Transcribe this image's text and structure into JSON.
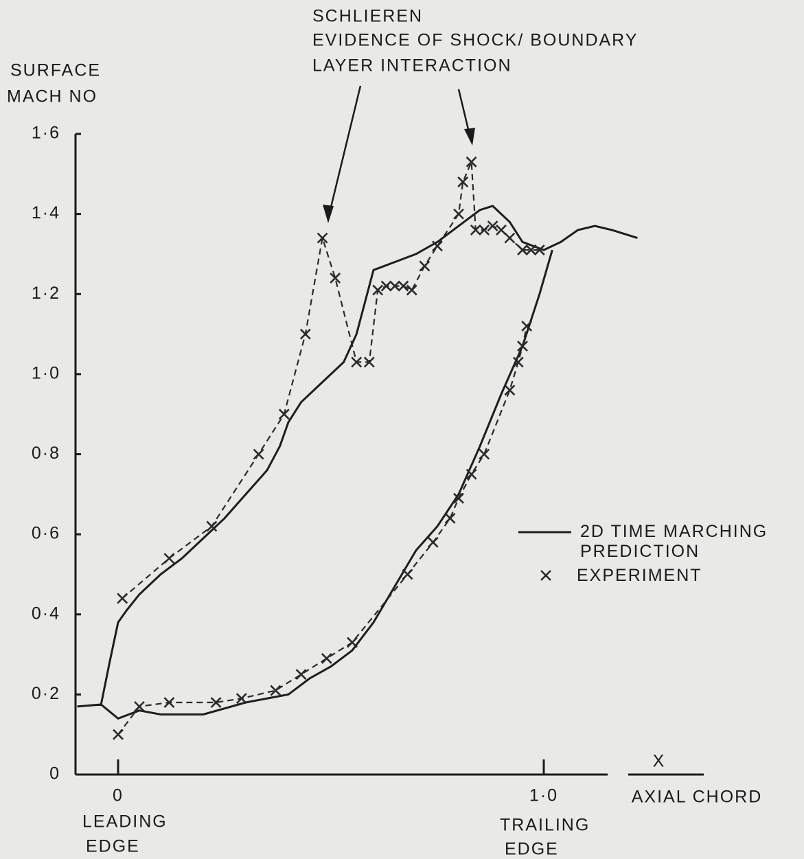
{
  "chart_data": {
    "type": "line",
    "ylabel": [
      "SURFACE",
      "MACH NO"
    ],
    "xlabel": {
      "symbol": "X",
      "text": "AXIAL CHORD"
    },
    "annotation": [
      "SCHLIEREN",
      "EVIDENCE OF SHOCK/ BOUNDARY",
      "LAYER  INTERACTION"
    ],
    "leading_edge": [
      "LEADING",
      "EDGE"
    ],
    "trailing_edge": [
      "TRAILING",
      "EDGE"
    ],
    "xlim": [
      -0.1,
      1.15
    ],
    "ylim": [
      0,
      1.6
    ],
    "xticks": [
      0,
      {
        "value": 1,
        "label": "1·0"
      }
    ],
    "yticks": [
      0,
      {
        "value": 0.2,
        "label": "0·2"
      },
      {
        "value": 0.4,
        "label": "0·4"
      },
      {
        "value": 0.6,
        "label": "0·6"
      },
      {
        "value": 0.8,
        "label": "0·8"
      },
      {
        "value": 1.0,
        "label": "1·0"
      },
      {
        "value": 1.2,
        "label": "1·2"
      },
      {
        "value": 1.4,
        "label": "1·4"
      },
      {
        "value": 1.6,
        "label": "1·6"
      }
    ],
    "series": [
      {
        "name": "2D TIME MARCHING PREDICTION",
        "color": "#1e1e1e",
        "style": "solid",
        "x": [
          -0.096,
          -0.04,
          -0.02,
          0.0,
          0.02,
          0.05,
          0.1,
          0.15,
          0.2,
          0.25,
          0.3,
          0.35,
          0.38,
          0.4,
          0.43,
          0.48,
          0.53,
          0.56,
          0.6,
          0.65,
          0.7,
          0.75,
          0.8,
          0.85,
          0.88,
          0.92,
          0.95,
          1.0,
          1.04,
          1.08,
          1.12,
          1.16,
          1.22,
          null,
          -0.04,
          0.0,
          0.05,
          0.1,
          0.2,
          0.3,
          0.4,
          0.45,
          0.5,
          0.55,
          0.6,
          0.65,
          0.7,
          0.75,
          0.8,
          0.85,
          0.9,
          0.95,
          0.99,
          1.02
        ],
        "values": [
          0.17,
          0.175,
          0.28,
          0.38,
          0.41,
          0.45,
          0.5,
          0.54,
          0.59,
          0.64,
          0.7,
          0.76,
          0.82,
          0.88,
          0.93,
          0.98,
          1.03,
          1.1,
          1.26,
          1.28,
          1.3,
          1.33,
          1.37,
          1.41,
          1.42,
          1.38,
          1.33,
          1.31,
          1.33,
          1.36,
          1.37,
          1.36,
          1.34,
          null,
          0.175,
          0.14,
          0.16,
          0.15,
          0.15,
          0.18,
          0.2,
          0.24,
          0.27,
          0.31,
          0.38,
          0.47,
          0.56,
          0.62,
          0.7,
          0.82,
          0.95,
          1.07,
          1.2,
          1.31
        ]
      },
      {
        "name": "EXPERIMENT",
        "color": "#2a2a2a",
        "style": "dashed",
        "marker": "x",
        "x": [
          0.01,
          0.12,
          0.22,
          0.33,
          0.39,
          0.44,
          0.48,
          0.51,
          0.56,
          0.59,
          0.61,
          0.63,
          0.65,
          0.67,
          0.69,
          0.72,
          0.75,
          0.8,
          0.81,
          0.83,
          0.84,
          0.86,
          0.88,
          0.9,
          0.92,
          0.95,
          0.97,
          0.99,
          null,
          0.0,
          0.05,
          0.12,
          0.23,
          0.29,
          0.37,
          0.43,
          0.49,
          0.55,
          0.68,
          0.74,
          0.78,
          0.8,
          0.83,
          0.86,
          0.92,
          0.94,
          0.95,
          0.96
        ],
        "values": [
          0.44,
          0.54,
          0.62,
          0.8,
          0.9,
          1.1,
          1.34,
          1.24,
          1.03,
          1.03,
          1.21,
          1.22,
          1.22,
          1.22,
          1.21,
          1.27,
          1.32,
          1.4,
          1.48,
          1.53,
          1.36,
          1.36,
          1.37,
          1.36,
          1.34,
          1.31,
          1.31,
          1.31,
          null,
          0.1,
          0.17,
          0.18,
          0.18,
          0.19,
          0.21,
          0.25,
          0.29,
          0.33,
          0.5,
          0.58,
          0.64,
          0.69,
          0.75,
          0.8,
          0.96,
          1.03,
          1.07,
          1.12
        ]
      }
    ]
  }
}
